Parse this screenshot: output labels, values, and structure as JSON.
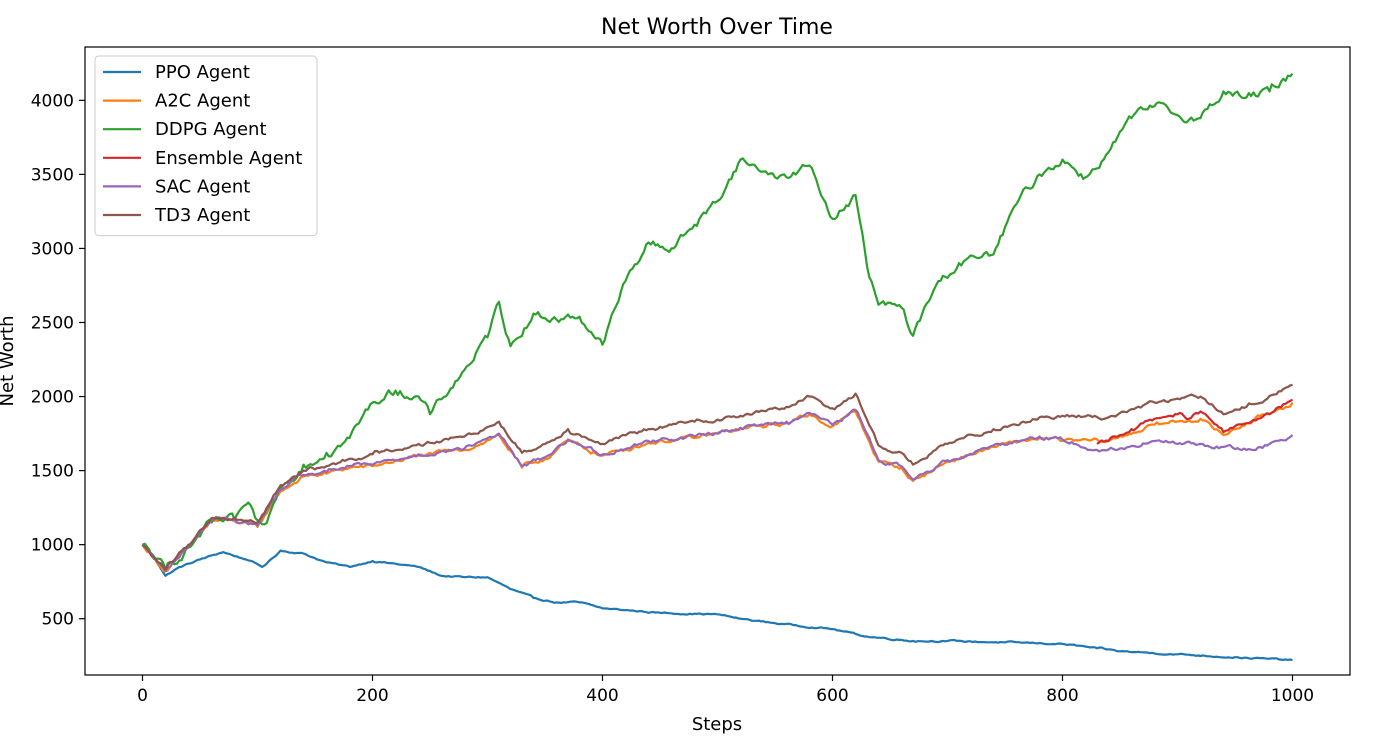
{
  "chart_data": {
    "type": "line",
    "title": "Net Worth Over Time",
    "xlabel": "Steps",
    "ylabel": "Net Worth",
    "xlim": [
      -50,
      1050
    ],
    "ylim": [
      120,
      4360
    ],
    "xticks": [
      0,
      200,
      400,
      600,
      800,
      1000
    ],
    "yticks": [
      500,
      1000,
      1500,
      2000,
      2500,
      3000,
      3500,
      4000
    ],
    "grid": false,
    "legend_position": "upper-left",
    "series": [
      {
        "name": "PPO Agent",
        "color": "#1f77b4",
        "x": [
          0,
          10,
          20,
          30,
          50,
          70,
          90,
          105,
          120,
          140,
          160,
          180,
          200,
          240,
          260,
          280,
          300,
          320,
          340,
          360,
          380,
          400,
          450,
          500,
          520,
          550,
          600,
          630,
          670,
          700,
          750,
          800,
          830,
          850,
          900,
          950,
          1000
        ],
        "y": [
          1000,
          920,
          790,
          840,
          900,
          950,
          900,
          850,
          960,
          940,
          880,
          850,
          890,
          850,
          790,
          780,
          780,
          700,
          640,
          610,
          610,
          570,
          540,
          530,
          500,
          470,
          430,
          380,
          350,
          350,
          340,
          330,
          300,
          280,
          260,
          240,
          220
        ]
      },
      {
        "name": "A2C Agent",
        "color": "#ff7f0e",
        "x": [
          0,
          20,
          40,
          60,
          80,
          100,
          120,
          140,
          160,
          180,
          200,
          240,
          280,
          310,
          330,
          350,
          370,
          400,
          440,
          480,
          520,
          560,
          580,
          600,
          620,
          640,
          660,
          670,
          700,
          740,
          780,
          800,
          840,
          880,
          920,
          940,
          960,
          1000
        ],
        "y": [
          1000,
          820,
          980,
          1160,
          1160,
          1120,
          1360,
          1460,
          1480,
          1520,
          1530,
          1600,
          1640,
          1740,
          1520,
          1580,
          1700,
          1600,
          1690,
          1720,
          1780,
          1820,
          1880,
          1800,
          1900,
          1560,
          1520,
          1430,
          1560,
          1660,
          1720,
          1700,
          1700,
          1810,
          1850,
          1740,
          1820,
          1960
        ]
      },
      {
        "name": "DDPG Agent",
        "color": "#2ca02c",
        "x": [
          0,
          20,
          40,
          60,
          80,
          90,
          105,
          120,
          140,
          160,
          180,
          200,
          220,
          240,
          250,
          280,
          300,
          310,
          320,
          340,
          360,
          380,
          400,
          420,
          440,
          460,
          480,
          500,
          520,
          540,
          560,
          580,
          600,
          620,
          630,
          640,
          660,
          670,
          690,
          710,
          740,
          760,
          780,
          800,
          820,
          840,
          860,
          880,
          900,
          920,
          940,
          960,
          980,
          1000
        ],
        "y": [
          1000,
          830,
          980,
          1150,
          1170,
          1270,
          1080,
          1380,
          1540,
          1620,
          1720,
          1960,
          2040,
          2000,
          1880,
          2180,
          2400,
          2640,
          2340,
          2560,
          2520,
          2540,
          2350,
          2780,
          3040,
          3000,
          3160,
          3320,
          3600,
          3520,
          3480,
          3560,
          3200,
          3360,
          2880,
          2620,
          2600,
          2410,
          2750,
          2900,
          2960,
          3300,
          3500,
          3600,
          3480,
          3650,
          3880,
          3960,
          3900,
          3880,
          4060,
          4020,
          4060,
          4180
        ]
      },
      {
        "name": "Ensemble Agent",
        "color": "#d62728",
        "x": [
          830,
          840,
          850,
          860,
          880,
          900,
          910,
          920,
          940,
          960,
          980,
          1000
        ],
        "y": [
          1680,
          1700,
          1740,
          1780,
          1850,
          1880,
          1850,
          1900,
          1760,
          1820,
          1880,
          1980
        ]
      },
      {
        "name": "SAC Agent",
        "color": "#9467bd",
        "x": [
          0,
          20,
          40,
          60,
          80,
          100,
          120,
          140,
          160,
          180,
          200,
          240,
          280,
          310,
          330,
          350,
          370,
          400,
          440,
          480,
          520,
          560,
          580,
          600,
          620,
          640,
          660,
          670,
          700,
          740,
          780,
          800,
          830,
          850,
          880,
          900,
          920,
          940,
          960,
          980,
          1000
        ],
        "y": [
          1000,
          820,
          990,
          1170,
          1170,
          1130,
          1370,
          1470,
          1490,
          1530,
          1540,
          1610,
          1650,
          1750,
          1530,
          1590,
          1710,
          1610,
          1700,
          1730,
          1790,
          1830,
          1890,
          1810,
          1910,
          1570,
          1530,
          1440,
          1570,
          1670,
          1730,
          1710,
          1640,
          1650,
          1700,
          1680,
          1680,
          1660,
          1640,
          1680,
          1740
        ]
      },
      {
        "name": "TD3 Agent",
        "color": "#8c564b",
        "x": [
          0,
          20,
          40,
          60,
          80,
          100,
          120,
          140,
          160,
          180,
          200,
          240,
          280,
          310,
          330,
          350,
          370,
          400,
          440,
          480,
          520,
          560,
          580,
          600,
          620,
          640,
          660,
          670,
          700,
          740,
          780,
          800,
          840,
          880,
          920,
          940,
          960,
          1000
        ],
        "y": [
          1000,
          830,
          1000,
          1180,
          1180,
          1150,
          1400,
          1500,
          1530,
          1580,
          1610,
          1680,
          1730,
          1830,
          1620,
          1680,
          1780,
          1680,
          1780,
          1830,
          1870,
          1930,
          2000,
          1920,
          2020,
          1670,
          1620,
          1540,
          1680,
          1780,
          1860,
          1870,
          1860,
          1960,
          2000,
          1880,
          1930,
          2080
        ]
      }
    ]
  }
}
